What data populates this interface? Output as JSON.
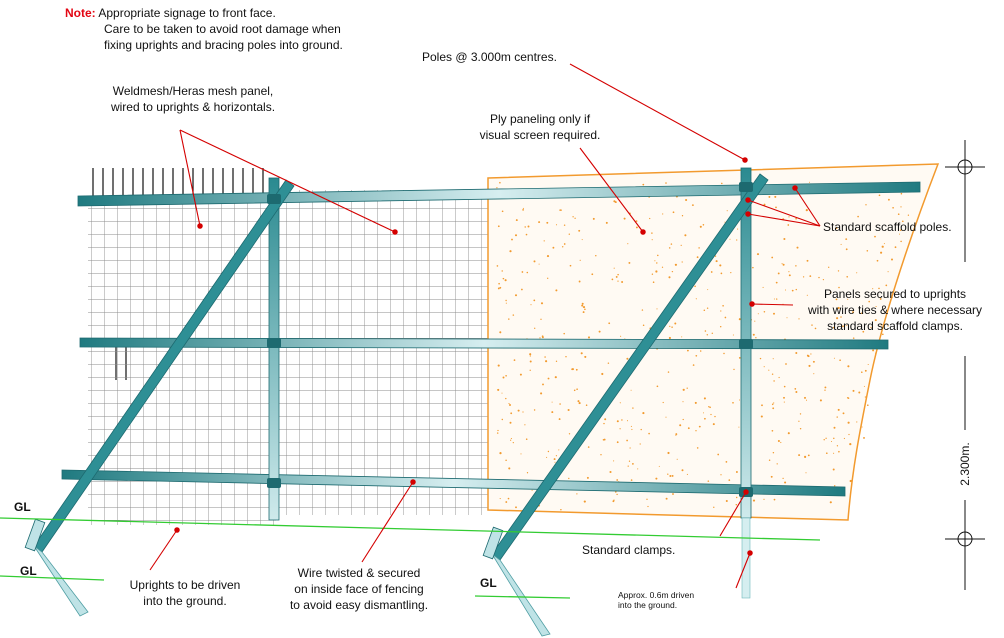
{
  "note": {
    "key": "Note:",
    "line1": "Appropriate signage to front face.",
    "line2": "Care to be taken to avoid root damage when",
    "line3": "fixing uprights and bracing poles into ground."
  },
  "labels": {
    "mesh_panel_1": "Weldmesh/Heras mesh panel,",
    "mesh_panel_2": "wired to uprights & horizontals.",
    "poles_centres": "Poles @ 3.000m centres.",
    "ply_1": "Ply paneling only if",
    "ply_2": "visual screen required.",
    "scaffold_poles": "Standard scaffold poles.",
    "panels_secured_1": "Panels secured to uprights",
    "panels_secured_2": "with wire ties & where necessary",
    "panels_secured_3": "standard scaffold clamps.",
    "dimension": "2.300m.",
    "standard_clamps": "Standard clamps.",
    "uprights_1": "Uprights to be driven",
    "uprights_2": "into the ground.",
    "wire_1": "Wire twisted & secured",
    "wire_2": "on inside face of fencing",
    "wire_3": "to avoid easy dismantling.",
    "driven_1": "Approx. 0.6m driven",
    "driven_2": "into the ground.",
    "gl_1": "GL",
    "gl_2": "GL",
    "gl_3": "GL"
  },
  "colors": {
    "note_red": "#e30613",
    "leader_red": "#d40000",
    "ground_green": "#33cc33",
    "pole_teal": "#2a8a90",
    "pole_light": "#bfe3e6",
    "ply_orange": "#f29a2e",
    "mesh_grey": "#9a9a9a",
    "spike_black": "#111111"
  }
}
